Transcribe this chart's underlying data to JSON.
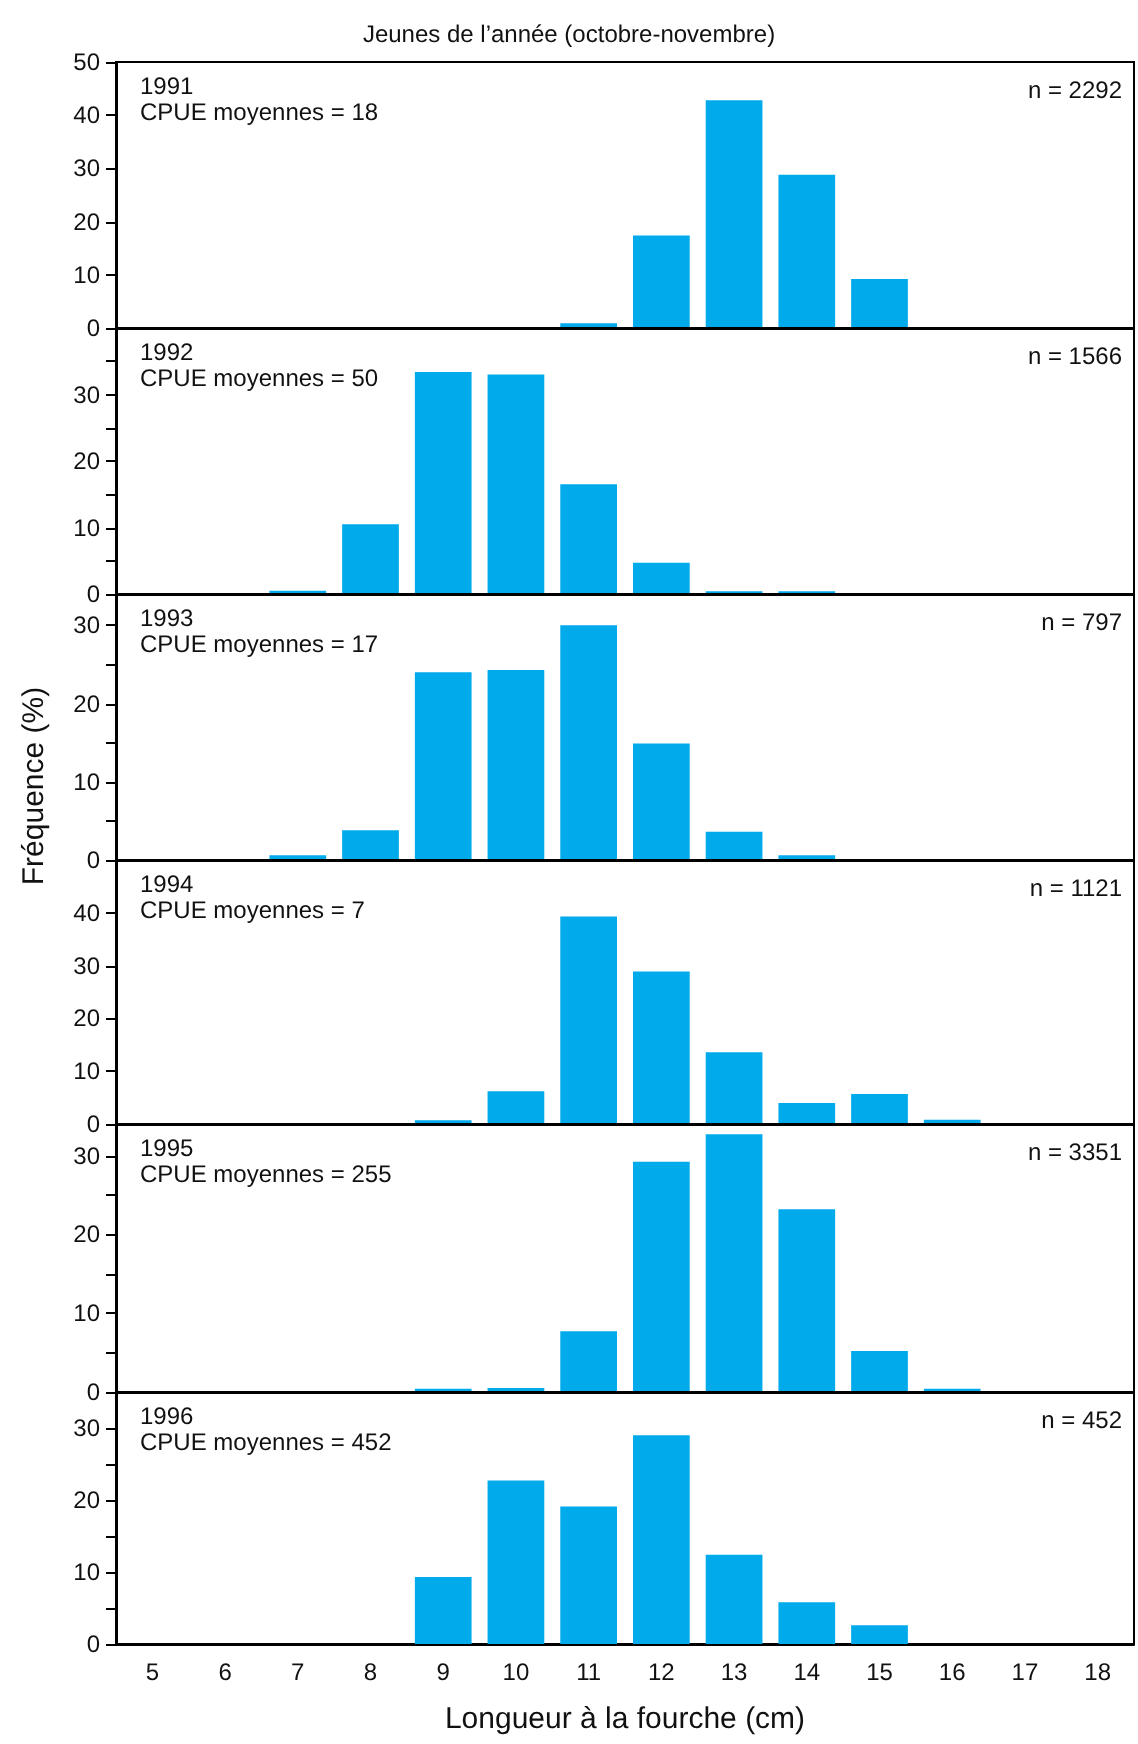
{
  "chart_data": [
    {
      "type": "bar",
      "title": "Jeunes de l’année (octobre-novembre)",
      "subtitle": "1991",
      "annotations": [
        "CPUE moyennes = 18",
        "n = 2292"
      ],
      "categories": [
        "5",
        "6",
        "7",
        "8",
        "9",
        "10",
        "11",
        "12",
        "13",
        "14",
        "15",
        "16",
        "17",
        "18"
      ],
      "values": [
        null,
        null,
        null,
        null,
        null,
        null,
        0.9,
        17.4,
        42.8,
        28.8,
        9.2,
        null,
        null,
        null
      ],
      "color": "#00aaeb",
      "ylim": [
        0,
        50
      ],
      "yticks": [
        0,
        10,
        20,
        30,
        40,
        50
      ],
      "tick_labels": "y"
    },
    {
      "type": "bar",
      "subtitle": "1992",
      "annotations": [
        "CPUE moyennes = 50",
        "n = 1566"
      ],
      "categories": [
        "5",
        "6",
        "7",
        "8",
        "9",
        "10",
        "11",
        "12",
        "13",
        "14",
        "15",
        "16",
        "17",
        "18"
      ],
      "values": [
        null,
        null,
        0.5,
        10.5,
        33.4,
        33,
        16.5,
        4.7,
        0.4,
        0.4,
        null,
        null,
        null,
        null
      ],
      "color": "#00aaeb",
      "ylim": [
        0,
        40
      ],
      "yticks": [
        0,
        {
          "value": 5,
          "label": null
        },
        10,
        {
          "value": 15,
          "label": null
        },
        20,
        {
          "value": 25,
          "label": null
        },
        30,
        {
          "value": 35,
          "label": null
        }
      ],
      "tick_labels": "y"
    },
    {
      "type": "bar",
      "ylabel": "Fréquence (%)",
      "subtitle": "1993",
      "annotations": [
        "CPUE moyennes = 17",
        "n = 797"
      ],
      "categories": [
        "5",
        "6",
        "7",
        "8",
        "9",
        "10",
        "11",
        "12",
        "13",
        "14",
        "15",
        "16",
        "17",
        "18"
      ],
      "values": [
        null,
        null,
        0.6,
        3.8,
        24,
        24.3,
        30,
        14.9,
        3.6,
        0.6,
        null,
        null,
        null,
        null
      ],
      "color": "#00aaeb",
      "ylim": [
        0,
        34
      ],
      "yticks": [
        0,
        {
          "value": 5,
          "label": null
        },
        10,
        {
          "value": 15,
          "label": null
        },
        20,
        {
          "value": 25,
          "label": null
        },
        30
      ],
      "tick_labels": "y"
    },
    {
      "type": "bar",
      "subtitle": "1994",
      "annotations": [
        "CPUE moyennes = 7",
        "n = 1121"
      ],
      "categories": [
        "5",
        "6",
        "7",
        "8",
        "9",
        "10",
        "11",
        "12",
        "13",
        "14",
        "15",
        "16",
        "17",
        "18"
      ],
      "values": [
        null,
        null,
        null,
        null,
        0.7,
        6.2,
        39.3,
        28.9,
        13.6,
        4,
        5.7,
        0.8,
        null,
        null
      ],
      "color": "#00aaeb",
      "ylim": [
        0,
        50
      ],
      "yticks": [
        0,
        10,
        20,
        30,
        40
      ],
      "tick_labels": "y"
    },
    {
      "type": "bar",
      "subtitle": "1995",
      "annotations": [
        "CPUE moyennes = 255",
        "n = 3351"
      ],
      "categories": [
        "5",
        "6",
        "7",
        "8",
        "9",
        "10",
        "11",
        "12",
        "13",
        "14",
        "15",
        "16",
        "17",
        "18"
      ],
      "values": [
        null,
        null,
        null,
        null,
        0.4,
        0.5,
        7.7,
        29.2,
        32.7,
        23.2,
        5.2,
        0.4,
        null,
        null
      ],
      "color": "#00aaeb",
      "ylim": [
        0,
        34
      ],
      "yticks": [
        0,
        {
          "value": 5,
          "label": null
        },
        10,
        {
          "value": 15,
          "label": null
        },
        20,
        {
          "value": 25,
          "label": null
        },
        30
      ],
      "tick_labels": "y"
    },
    {
      "type": "bar",
      "subtitle": "1996",
      "annotations": [
        "CPUE moyennes = 452",
        "n = 452"
      ],
      "xlabel": "Longueur à la fourche (cm)",
      "categories": [
        "5",
        "6",
        "7",
        "8",
        "9",
        "10",
        "11",
        "12",
        "13",
        "14",
        "15",
        "16",
        "17",
        "18"
      ],
      "values": [
        null,
        null,
        null,
        null,
        9.3,
        22.7,
        19.1,
        29,
        12.4,
        5.8,
        2.6,
        null,
        null,
        null
      ],
      "color": "#00aaeb",
      "ylim": [
        0,
        35
      ],
      "yticks": [
        0,
        {
          "value": 5,
          "label": null
        },
        10,
        {
          "value": 15,
          "label": null
        },
        20,
        {
          "value": 25,
          "label": null
        },
        30
      ]
    }
  ]
}
